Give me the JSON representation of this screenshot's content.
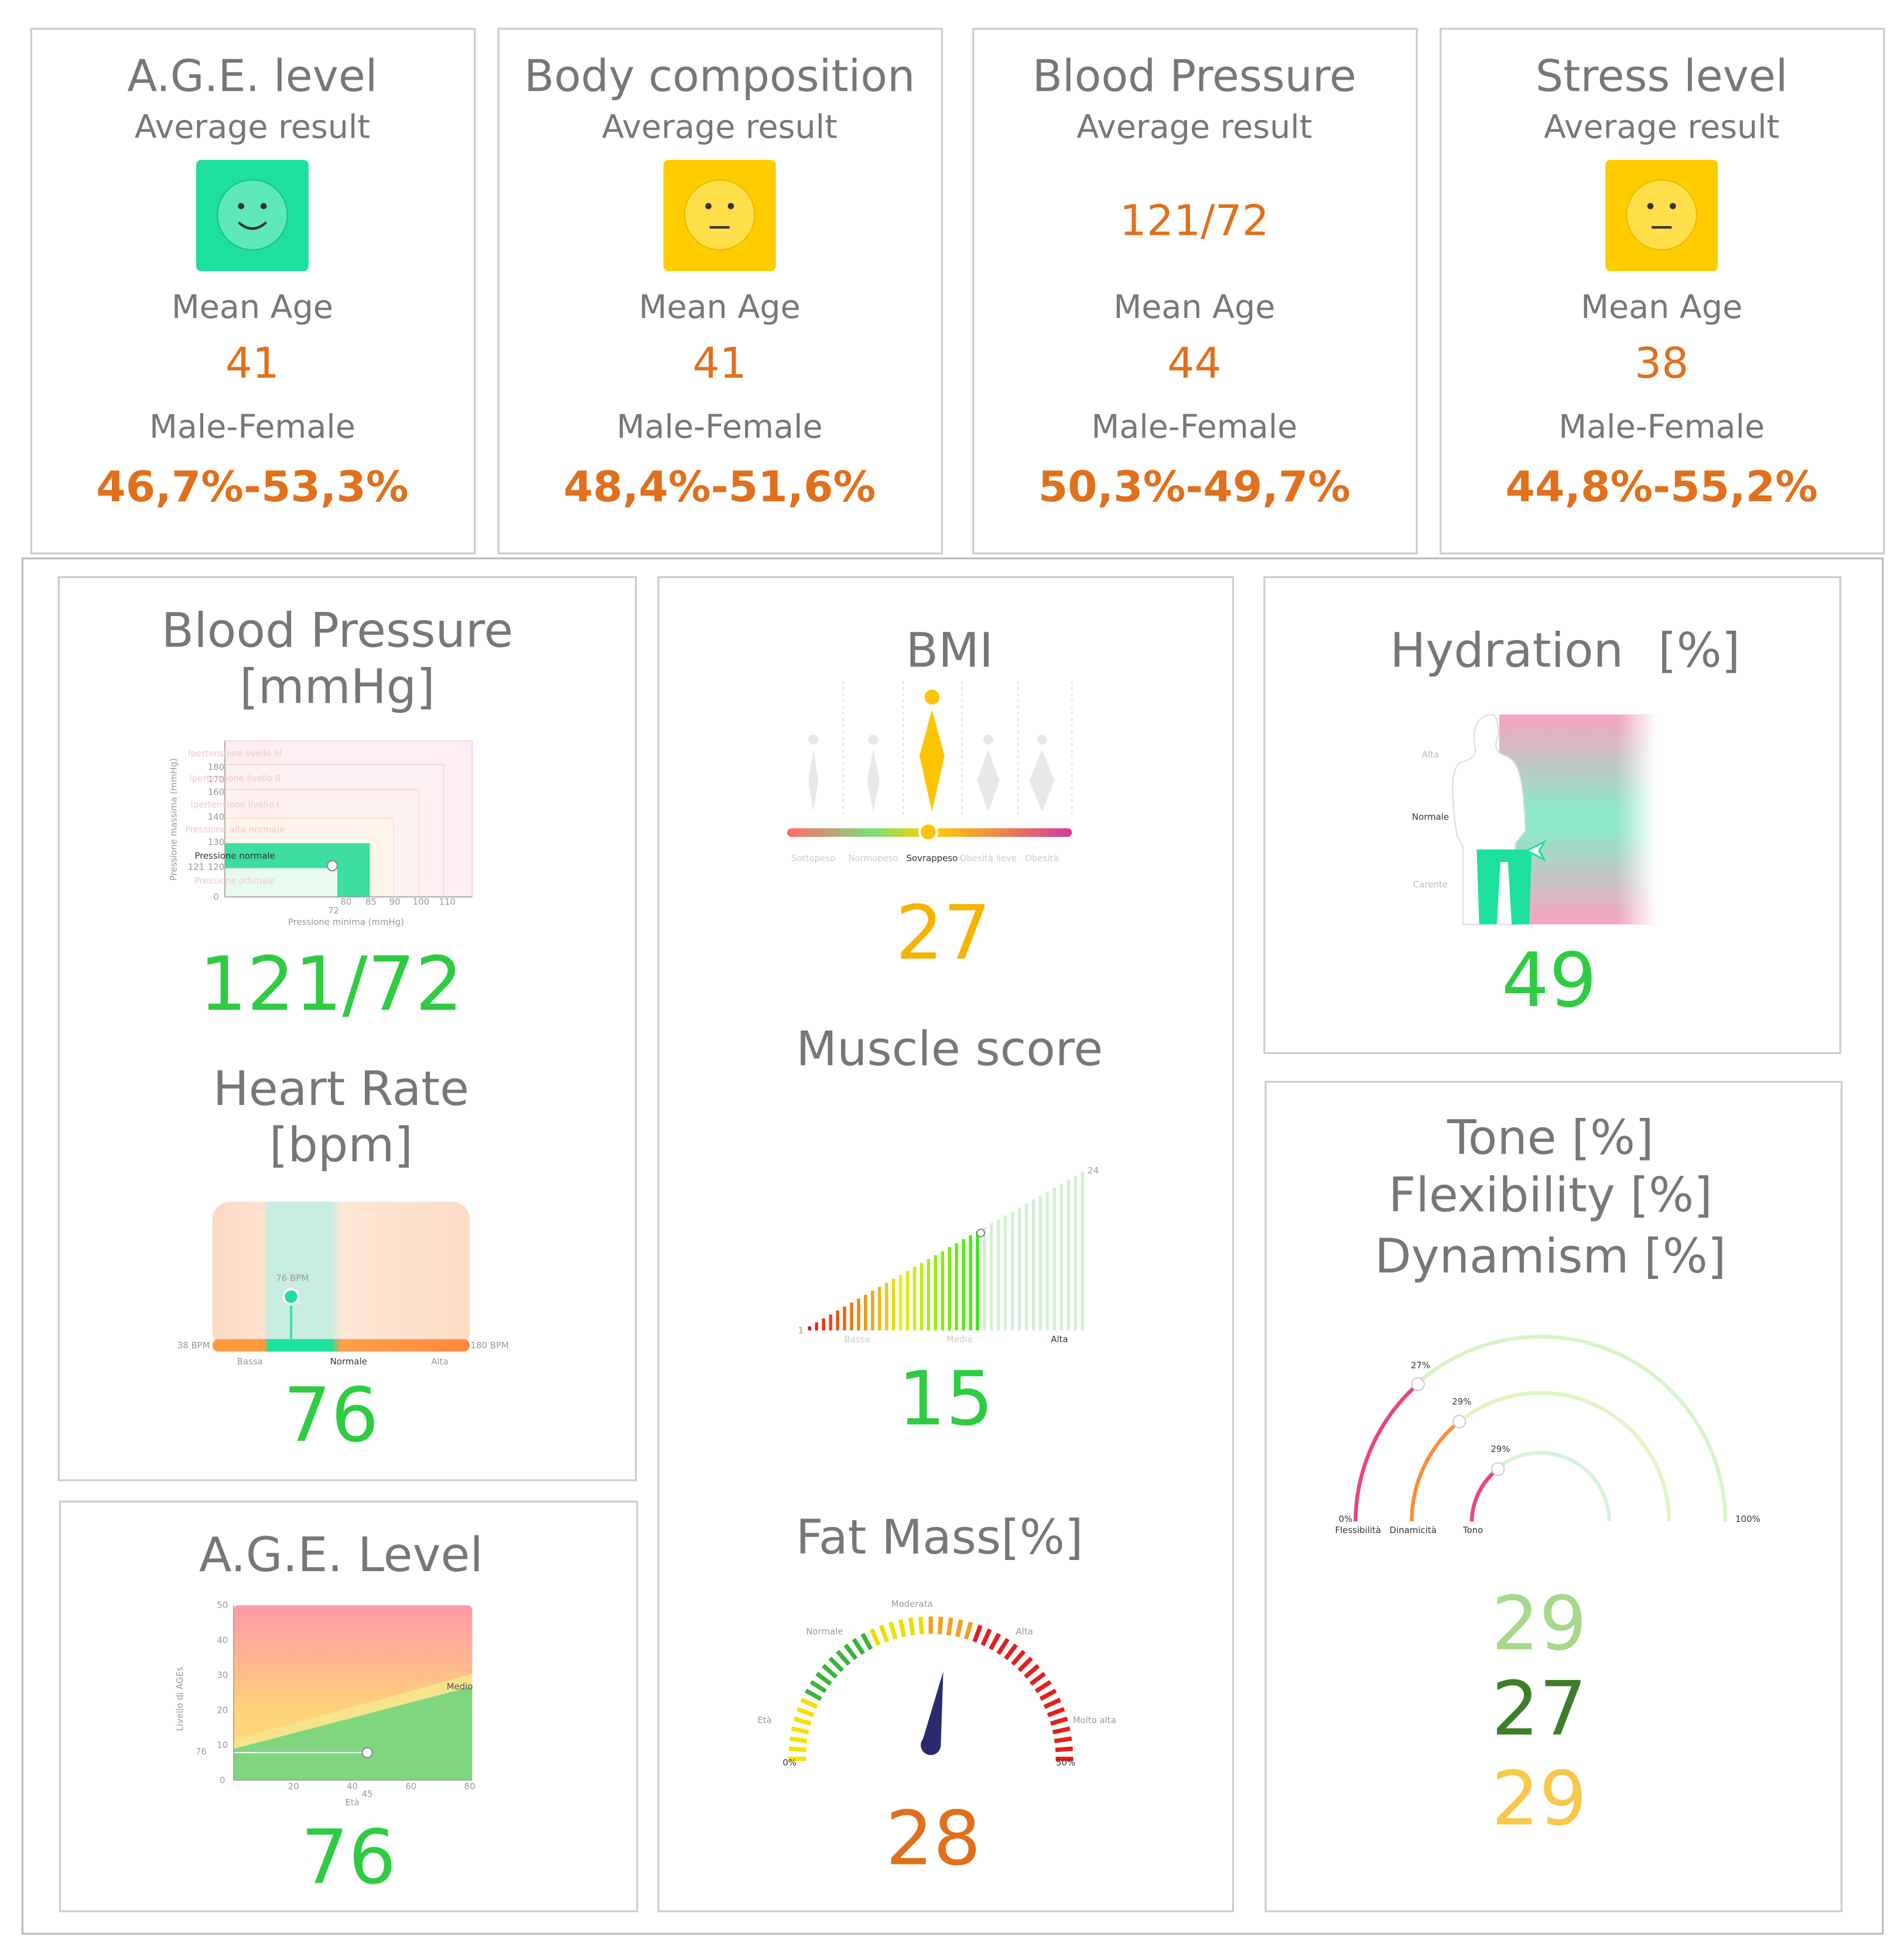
{
  "summary_cards": [
    {
      "title": "A.G.E. level",
      "subtitle": "Average result",
      "mean_age_label": "Mean Age",
      "mean_age": "41",
      "gender_label": "Male-Female",
      "gender_split": "46,7%-53,3%"
    },
    {
      "title": "Body composition",
      "subtitle": "Average result",
      "mean_age_label": "Mean Age",
      "mean_age": "41",
      "gender_label": "Male-Female",
      "gender_split": "48,4%-51,6%"
    },
    {
      "title": "Blood Pressure",
      "subtitle": "Average result",
      "result": "121/72",
      "mean_age_label": "Mean Age",
      "mean_age": "44",
      "gender_label": "Male-Female",
      "gender_split": "50,3%-49,7%"
    },
    {
      "title": "Stress level",
      "subtitle": "Average result",
      "mean_age_label": "Mean Age",
      "mean_age": "38",
      "gender_label": "Male-Female",
      "gender_split": "44,8%-55,2%"
    }
  ],
  "blood_pressure": {
    "title_line1": "Blood Pressure",
    "title_line2": "[mmHg]",
    "value": "121/72",
    "yticks": [
      "180",
      "170",
      "160",
      "140",
      "130",
      "120",
      "0"
    ],
    "xticks": [
      "80",
      "85",
      "90",
      "100",
      "110"
    ],
    "marker_y": "121",
    "marker_x": "72",
    "ylabel": "Pressione massima (mmHg)",
    "xlabel": "Pressione minima (mmHg)",
    "zones": [
      "Ipertensione livello III",
      "Ipertensione livello II",
      "Ipertensione livello I",
      "Pressione alta normale",
      "Pressione normale",
      "Pressione ottimale"
    ]
  },
  "heart_rate": {
    "title_line1": "Heart Rate",
    "title_line2": "[bpm]",
    "value": "76",
    "marker_label": "76 BPM",
    "min_label": "38 BPM",
    "max_label": "180 BPM",
    "zones": [
      "Bassa",
      "Normale",
      "Alta"
    ]
  },
  "age_level": {
    "title": "A.G.E. Level",
    "value": "76",
    "yticks": [
      "50",
      "40",
      "30",
      "20",
      "10",
      "0"
    ],
    "xticks": [
      "20",
      "40",
      "60",
      "80"
    ],
    "marker_y": "76",
    "marker_x": "45",
    "ylabel": "Livello di AGEs",
    "xlabel": "Età",
    "band_label": "Medio"
  },
  "bmi": {
    "title": "BMI",
    "value": "27",
    "categories": [
      "Sottopeso",
      "Normopeso",
      "Sovrappeso",
      "Obesità lieve",
      "Obesità"
    ]
  },
  "muscle": {
    "title": "Muscle score",
    "value": "15",
    "min_label": "1",
    "max_label": "24",
    "zones": [
      "Bassa",
      "Media",
      "Alta"
    ]
  },
  "fat_mass": {
    "title": "Fat Mass[%]",
    "value": "28",
    "zones": [
      "Età",
      "Normale",
      "Moderata",
      "Alta",
      "Molto alta"
    ],
    "min_label": "0%",
    "max_label": "50%"
  },
  "hydration": {
    "title": "Hydration",
    "unit": "[%]",
    "value": "49",
    "levels": [
      "Alta",
      "Normale",
      "Carente"
    ]
  },
  "tone": {
    "title_lines": [
      "Tone [%]",
      "Flexibility [%]",
      "Dynamism [%]"
    ],
    "arc_labels": [
      "27%",
      "29%",
      "29%"
    ],
    "min_label": "0%",
    "max_label": "100%",
    "arc_names": [
      "Flessibilità",
      "Dinamicità",
      "Tono"
    ],
    "values": [
      "29",
      "27",
      "29"
    ]
  }
}
